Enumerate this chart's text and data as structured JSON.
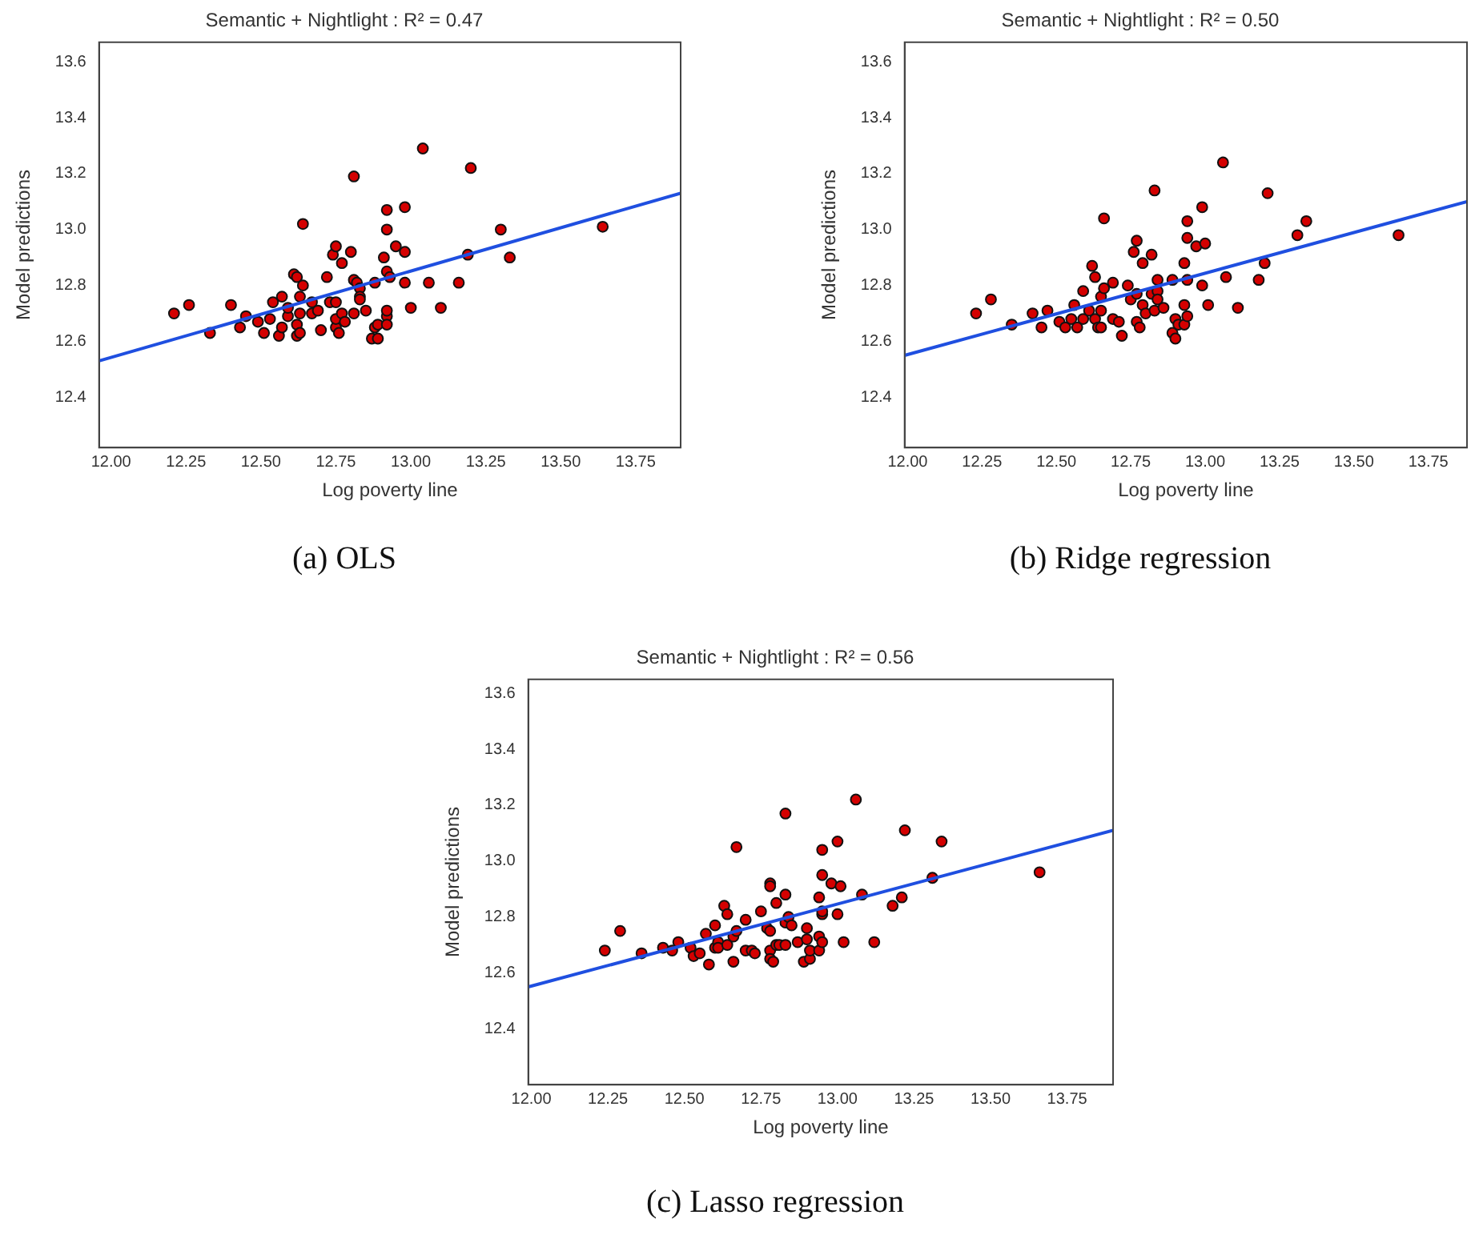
{
  "chart_data": [
    {
      "type": "scatter",
      "title": "Semantic + Nightlight : R² = 0.47",
      "xlabel": "Log poverty line",
      "ylabel": "Model predictions",
      "annotations": [
        "(a) OLS"
      ],
      "xlim": [
        11.96,
        13.9
      ],
      "ylim": [
        12.22,
        13.67
      ],
      "xticks": [
        {
          "value": 12,
          "label": "12.00"
        },
        {
          "value": 12.25,
          "label": "12.25"
        },
        {
          "value": 12.5,
          "label": "12.50"
        },
        {
          "value": 12.75,
          "label": "12.75"
        },
        {
          "value": 13,
          "label": "13.00"
        },
        {
          "value": 13.25,
          "label": "13.25"
        },
        {
          "value": 13.5,
          "label": "13.50"
        },
        {
          "value": 13.75,
          "label": "13.75"
        }
      ],
      "yticks": [
        {
          "value": 12.4,
          "label": "12.4"
        },
        {
          "value": 12.6,
          "label": "12.6"
        },
        {
          "value": 12.8,
          "label": "12.8"
        },
        {
          "value": 13,
          "label": "13.0"
        },
        {
          "value": 13.2,
          "label": "13.2"
        },
        {
          "value": 13.4,
          "label": "13.4"
        },
        {
          "value": 13.6,
          "label": "13.6"
        }
      ],
      "grid": false,
      "legend": false,
      "series": [
        {
          "type": "scatter",
          "marker": "circle",
          "color": "#d40000",
          "x": [
            12.21,
            12.26,
            12.33,
            12.4,
            12.43,
            12.45,
            12.49,
            12.51,
            12.53,
            12.54,
            12.56,
            12.57,
            12.57,
            12.59,
            12.59,
            12.61,
            12.62,
            12.62,
            12.62,
            12.63,
            12.63,
            12.63,
            12.64,
            12.64,
            12.67,
            12.67,
            12.69,
            12.7,
            12.72,
            12.73,
            12.74,
            12.75,
            12.75,
            12.75,
            12.75,
            12.76,
            12.77,
            12.77,
            12.78,
            12.8,
            12.81,
            12.81,
            12.81,
            12.82,
            12.83,
            12.83,
            12.83,
            12.85,
            12.87,
            12.88,
            12.88,
            12.89,
            12.89,
            12.91,
            12.92,
            12.92,
            12.92,
            12.92,
            12.92,
            12.93,
            12.92,
            12.95,
            12.98,
            12.98,
            12.98,
            13.0,
            13.04,
            13.06,
            13.1,
            13.16,
            13.19,
            13.2,
            13.3,
            13.33,
            13.64
          ],
          "values": [
            12.7,
            12.73,
            12.63,
            12.73,
            12.65,
            12.69,
            12.67,
            12.63,
            12.68,
            12.74,
            12.62,
            12.65,
            12.76,
            12.69,
            12.72,
            12.84,
            12.83,
            12.66,
            12.62,
            12.7,
            12.76,
            12.63,
            13.02,
            12.8,
            12.74,
            12.7,
            12.71,
            12.64,
            12.83,
            12.74,
            12.91,
            12.94,
            12.74,
            12.65,
            12.68,
            12.63,
            12.88,
            12.7,
            12.67,
            12.92,
            12.82,
            13.19,
            12.7,
            12.81,
            12.79,
            12.76,
            12.75,
            12.71,
            12.61,
            12.81,
            12.65,
            12.61,
            12.66,
            12.9,
            12.69,
            12.71,
            13.07,
            13.0,
            12.85,
            12.83,
            12.66,
            12.94,
            13.08,
            12.81,
            12.92,
            12.72,
            13.29,
            12.81,
            12.72,
            12.81,
            12.91,
            13.22,
            13.0,
            12.9,
            13.01
          ]
        },
        {
          "type": "line",
          "marker": "none",
          "color": "#1f4fe0",
          "x": [
            11.96,
            13.9
          ],
          "values": [
            12.53,
            13.13
          ]
        }
      ]
    },
    {
      "type": "scatter",
      "title": "Semantic + Nightlight : R² = 0.50",
      "xlabel": "Log poverty line",
      "ylabel": "Model predictions",
      "annotations": [
        "(b) Ridge regression"
      ],
      "xlim": [
        11.99,
        13.88
      ],
      "ylim": [
        12.22,
        13.67
      ],
      "xticks": [
        {
          "value": 12,
          "label": "12.00"
        },
        {
          "value": 12.25,
          "label": "12.25"
        },
        {
          "value": 12.5,
          "label": "12.50"
        },
        {
          "value": 12.75,
          "label": "12.75"
        },
        {
          "value": 13,
          "label": "13.00"
        },
        {
          "value": 13.25,
          "label": "13.25"
        },
        {
          "value": 13.5,
          "label": "13.50"
        },
        {
          "value": 13.75,
          "label": "13.75"
        }
      ],
      "yticks": [
        {
          "value": 12.4,
          "label": "12.4"
        },
        {
          "value": 12.6,
          "label": "12.6"
        },
        {
          "value": 12.8,
          "label": "12.8"
        },
        {
          "value": 13,
          "label": "13.0"
        },
        {
          "value": 13.2,
          "label": "13.2"
        },
        {
          "value": 13.4,
          "label": "13.4"
        },
        {
          "value": 13.6,
          "label": "13.6"
        }
      ],
      "grid": false,
      "legend": false,
      "series": [
        {
          "type": "scatter",
          "marker": "circle",
          "color": "#d40000",
          "x": [
            12.23,
            12.28,
            12.35,
            12.42,
            12.45,
            12.47,
            12.51,
            12.53,
            12.55,
            12.56,
            12.57,
            12.59,
            12.59,
            12.61,
            12.62,
            12.63,
            12.63,
            12.64,
            12.65,
            12.65,
            12.65,
            12.66,
            12.66,
            12.69,
            12.69,
            12.71,
            12.72,
            12.74,
            12.75,
            12.76,
            12.77,
            12.77,
            12.77,
            12.78,
            12.79,
            12.79,
            12.8,
            12.82,
            12.82,
            12.83,
            12.83,
            12.84,
            12.84,
            12.84,
            12.86,
            12.89,
            12.89,
            12.9,
            12.9,
            12.91,
            12.93,
            12.93,
            12.93,
            12.94,
            12.94,
            12.94,
            12.94,
            12.97,
            12.99,
            12.99,
            13.0,
            13.01,
            13.06,
            13.07,
            13.11,
            13.18,
            13.2,
            13.21,
            13.31,
            13.34,
            13.65
          ],
          "values": [
            12.7,
            12.75,
            12.66,
            12.7,
            12.65,
            12.71,
            12.67,
            12.65,
            12.68,
            12.73,
            12.65,
            12.78,
            12.68,
            12.71,
            12.87,
            12.83,
            12.68,
            12.65,
            12.71,
            12.65,
            12.76,
            13.04,
            12.79,
            12.81,
            12.68,
            12.67,
            12.62,
            12.8,
            12.75,
            12.92,
            12.96,
            12.77,
            12.67,
            12.65,
            12.88,
            12.73,
            12.7,
            12.91,
            12.77,
            13.14,
            12.71,
            12.82,
            12.78,
            12.75,
            12.72,
            12.63,
            12.82,
            12.68,
            12.61,
            12.66,
            12.88,
            12.73,
            12.66,
            13.03,
            12.97,
            12.69,
            12.82,
            12.94,
            13.08,
            12.8,
            12.95,
            12.73,
            13.24,
            12.83,
            12.72,
            12.82,
            12.88,
            13.13,
            12.98,
            13.03,
            12.98
          ]
        },
        {
          "type": "line",
          "marker": "none",
          "color": "#1f4fe0",
          "x": [
            11.99,
            13.88
          ],
          "values": [
            12.55,
            13.1
          ]
        }
      ]
    },
    {
      "type": "scatter",
      "title": "Semantic + Nightlight : R² = 0.56",
      "xlabel": "Log poverty line",
      "ylabel": "Model predictions",
      "annotations": [
        "(c) Lasso regression"
      ],
      "xlim": [
        11.99,
        13.9
      ],
      "ylim": [
        12.2,
        13.65
      ],
      "xticks": [
        {
          "value": 12,
          "label": "12.00"
        },
        {
          "value": 12.25,
          "label": "12.25"
        },
        {
          "value": 12.5,
          "label": "12.50"
        },
        {
          "value": 12.75,
          "label": "12.75"
        },
        {
          "value": 13,
          "label": "13.00"
        },
        {
          "value": 13.25,
          "label": "13.25"
        },
        {
          "value": 13.5,
          "label": "13.50"
        },
        {
          "value": 13.75,
          "label": "13.75"
        }
      ],
      "yticks": [
        {
          "value": 12.4,
          "label": "12.4"
        },
        {
          "value": 12.6,
          "label": "12.6"
        },
        {
          "value": 12.8,
          "label": "12.8"
        },
        {
          "value": 13,
          "label": "13.0"
        },
        {
          "value": 13.2,
          "label": "13.2"
        },
        {
          "value": 13.4,
          "label": "13.4"
        },
        {
          "value": 13.6,
          "label": "13.6"
        }
      ],
      "grid": false,
      "legend": false,
      "series": [
        {
          "type": "scatter",
          "marker": "circle",
          "color": "#d40000",
          "x": [
            12.24,
            12.29,
            12.36,
            12.43,
            12.46,
            12.48,
            12.52,
            12.53,
            12.55,
            12.57,
            12.58,
            12.6,
            12.6,
            12.61,
            12.61,
            12.63,
            12.64,
            12.64,
            12.66,
            12.66,
            12.67,
            12.67,
            12.7,
            12.7,
            12.72,
            12.73,
            12.75,
            12.77,
            12.78,
            12.78,
            12.78,
            12.78,
            12.78,
            12.79,
            12.8,
            12.8,
            12.81,
            12.83,
            12.83,
            12.83,
            12.83,
            12.84,
            12.85,
            12.87,
            12.89,
            12.9,
            12.9,
            12.91,
            12.91,
            12.94,
            12.94,
            12.94,
            12.95,
            12.95,
            12.95,
            12.95,
            12.95,
            12.98,
            13.0,
            13.0,
            13.01,
            13.02,
            13.06,
            13.08,
            13.12,
            13.18,
            13.21,
            13.22,
            13.31,
            13.34,
            13.66
          ],
          "values": [
            12.68,
            12.75,
            12.67,
            12.69,
            12.68,
            12.71,
            12.69,
            12.66,
            12.67,
            12.74,
            12.63,
            12.77,
            12.69,
            12.71,
            12.69,
            12.84,
            12.81,
            12.7,
            12.73,
            12.64,
            13.05,
            12.75,
            12.79,
            12.68,
            12.68,
            12.67,
            12.82,
            12.76,
            12.92,
            12.91,
            12.75,
            12.68,
            12.65,
            12.64,
            12.85,
            12.7,
            12.7,
            12.88,
            12.78,
            13.17,
            12.7,
            12.8,
            12.77,
            12.71,
            12.64,
            12.76,
            12.72,
            12.65,
            12.68,
            12.87,
            12.73,
            12.68,
            13.04,
            12.95,
            12.81,
            12.71,
            12.82,
            12.92,
            13.07,
            12.81,
            12.91,
            12.71,
            13.22,
            12.88,
            12.71,
            12.84,
            12.87,
            13.11,
            12.94,
            13.07,
            12.96
          ]
        },
        {
          "type": "line",
          "marker": "none",
          "color": "#1f4fe0",
          "x": [
            11.99,
            13.9
          ],
          "values": [
            12.55,
            13.11
          ]
        }
      ]
    }
  ]
}
